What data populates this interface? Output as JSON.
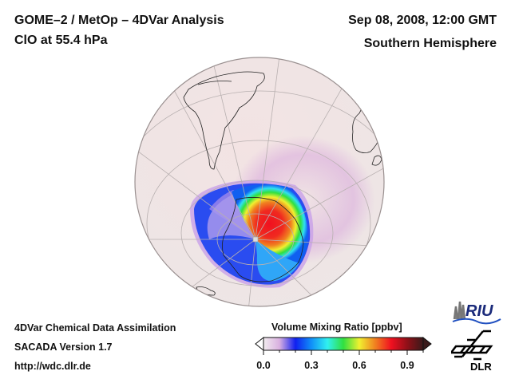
{
  "header": {
    "title_line1": "GOME–2 / MetOp – 4DVar Analysis",
    "title_line2": "ClO at 55.4 hPa",
    "datetime": "Sep 08, 2008, 12:00 GMT",
    "region": "Southern Hemisphere"
  },
  "footer": {
    "line1": "4DVar Chemical Data Assimilation",
    "line2": "SACADA Version 1.7",
    "line3": "http://wdc.dlr.de"
  },
  "colorbar": {
    "title": "Volume Mixing Ratio [ppbv]",
    "min": 0.0,
    "max": 1.0,
    "ticks": [
      "0.0",
      "0.3",
      "0.6",
      "0.9"
    ],
    "tick_values": [
      0.0,
      0.3,
      0.6,
      0.9
    ],
    "extend": "both",
    "colors": [
      "#f2ecef",
      "#d9b0e0",
      "#1020f0",
      "#1090f8",
      "#30f0f0",
      "#30e040",
      "#f0f030",
      "#f08020",
      "#f01020",
      "#901018",
      "#3a1a1a"
    ]
  },
  "logos": {
    "riu": "RIU",
    "dlr": "DLR"
  },
  "map": {
    "projection": "orthographic",
    "hemisphere": "south",
    "ocean_color": "#efe6e6",
    "graticule_color": "#b8b0b0",
    "coast_color": "#222222",
    "field": "ClO"
  }
}
